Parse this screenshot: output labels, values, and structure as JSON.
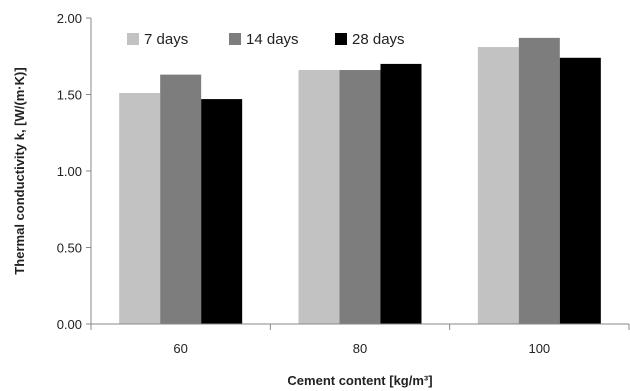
{
  "chart_data": {
    "type": "bar",
    "categories": [
      "60",
      "80",
      "100"
    ],
    "series": [
      {
        "name": "7 days",
        "values": [
          1.51,
          1.66,
          1.81
        ],
        "color": "#c2c2c2"
      },
      {
        "name": "14 days",
        "values": [
          1.63,
          1.66,
          1.87
        ],
        "color": "#7d7d7d"
      },
      {
        "name": "28 days",
        "values": [
          1.47,
          1.7,
          1.74
        ],
        "color": "#000000"
      }
    ],
    "title": "",
    "xlabel": "Cement content [kg/m³]",
    "ylabel": "Thermal conductivity k, [W/(m·K)]",
    "ylim": [
      0,
      2
    ],
    "yticks": [
      "0.00",
      "0.50",
      "1.00",
      "1.50",
      "2.00"
    ],
    "ytick_values": [
      0,
      0.5,
      1,
      1.5,
      2
    ],
    "grid": false,
    "legend_position": "top-left"
  }
}
